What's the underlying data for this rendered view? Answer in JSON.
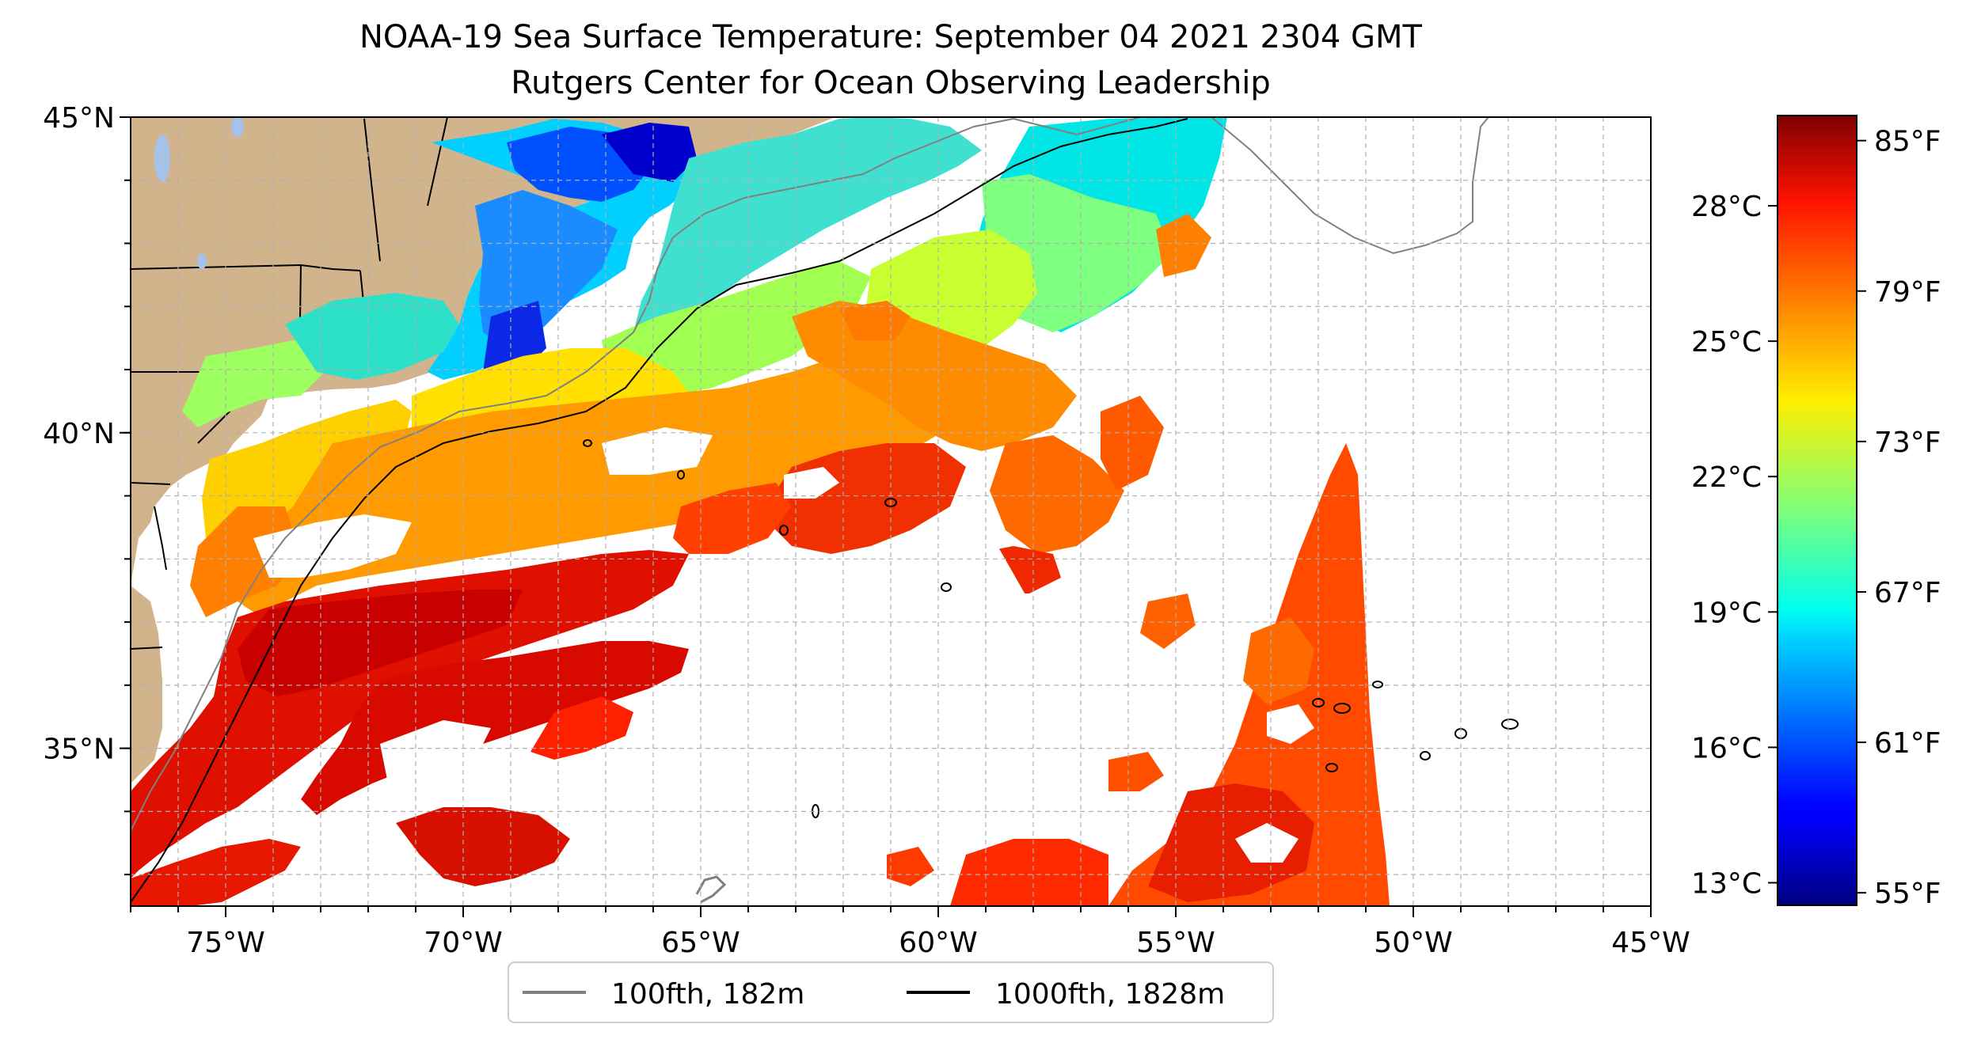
{
  "title": {
    "line1": "NOAA-19 Sea Surface Temperature: September 04 2021 2304 GMT",
    "line2": "Rutgers Center for Ocean Observing Leadership"
  },
  "map": {
    "lon_range": [
      -77,
      -45
    ],
    "lat_range": [
      32.5,
      45
    ],
    "lon_ticks": [
      -75,
      -70,
      -65,
      -60,
      -55,
      -50,
      -45
    ],
    "lon_tick_labels": [
      "75°W",
      "70°W",
      "65°W",
      "60°W",
      "55°W",
      "50°W",
      "45°W"
    ],
    "lat_ticks": [
      35,
      40,
      45
    ],
    "lat_tick_labels": [
      "35°N",
      "40°N",
      "45°N"
    ],
    "gridlines": true,
    "colors": {
      "land": "#d2b48c",
      "lakes": "#a6c2e8",
      "isobath_100fth": "#808080",
      "isobath_1000fth": "#000000"
    }
  },
  "legend": {
    "placement": "bottom-center",
    "entries": [
      {
        "label": "100fth, 182m",
        "color": "#808080"
      },
      {
        "label": "1000fth, 1828m",
        "color": "#000000"
      }
    ]
  },
  "colorbar": {
    "colormap": "jet",
    "range_f": [
      54.5,
      86
    ],
    "fahrenheit_ticks": [
      55,
      61,
      67,
      73,
      79,
      85
    ],
    "fahrenheit_labels": [
      "55°F",
      "61°F",
      "67°F",
      "73°F",
      "79°F",
      "85°F"
    ],
    "celsius_ticks": [
      13,
      16,
      19,
      22,
      25,
      28
    ],
    "celsius_labels": [
      "13°C",
      "16°C",
      "19°C",
      "22°C",
      "25°C",
      "28°C"
    ]
  }
}
